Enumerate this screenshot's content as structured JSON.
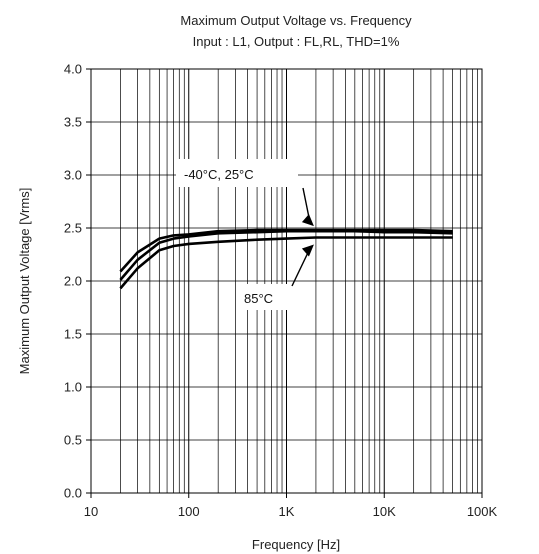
{
  "chart_data": {
    "type": "line",
    "title": "Maximum Output Voltage vs. Frequency",
    "subtitle": "Input : L1, Output : FL,RL, THD=1%",
    "xlabel": "Frequency [Hz]",
    "ylabel": "Maximum Output Voltage [Vrms]",
    "x_scale": "log",
    "xlim": [
      10,
      100000
    ],
    "ylim": [
      0,
      4.0
    ],
    "x_ticks": [
      10,
      100,
      1000,
      10000,
      100000
    ],
    "x_tick_labels": [
      "10",
      "100",
      "1K",
      "10K",
      "100K"
    ],
    "y_ticks": [
      0,
      0.5,
      1.0,
      1.5,
      2.0,
      2.5,
      3.0,
      3.5,
      4.0
    ],
    "y_tick_labels": [
      "0.0",
      "0.5",
      "1.0",
      "1.5",
      "2.0",
      "2.5",
      "3.0",
      "3.5",
      "4.0"
    ],
    "grid": true,
    "x": [
      20,
      30,
      50,
      70,
      100,
      200,
      500,
      1000,
      2000,
      5000,
      10000,
      20000,
      50000
    ],
    "series": [
      {
        "values": [
          2.09,
          2.27,
          2.4,
          2.43,
          2.44,
          2.47,
          2.48,
          2.48,
          2.48,
          2.48,
          2.48,
          2.48,
          2.47
        ]
      },
      {
        "values": [
          2.01,
          2.2,
          2.36,
          2.4,
          2.42,
          2.45,
          2.46,
          2.47,
          2.47,
          2.47,
          2.46,
          2.46,
          2.45
        ]
      },
      {
        "values": [
          1.93,
          2.12,
          2.29,
          2.33,
          2.35,
          2.37,
          2.39,
          2.4,
          2.41,
          2.41,
          2.41,
          2.41,
          2.41
        ]
      }
    ],
    "annotations": [
      {
        "text": "-40°C, 25°C",
        "target_x": 2000,
        "target_y": 2.48
      },
      {
        "text": "85°C",
        "target_x": 2000,
        "target_y": 2.41
      }
    ]
  }
}
